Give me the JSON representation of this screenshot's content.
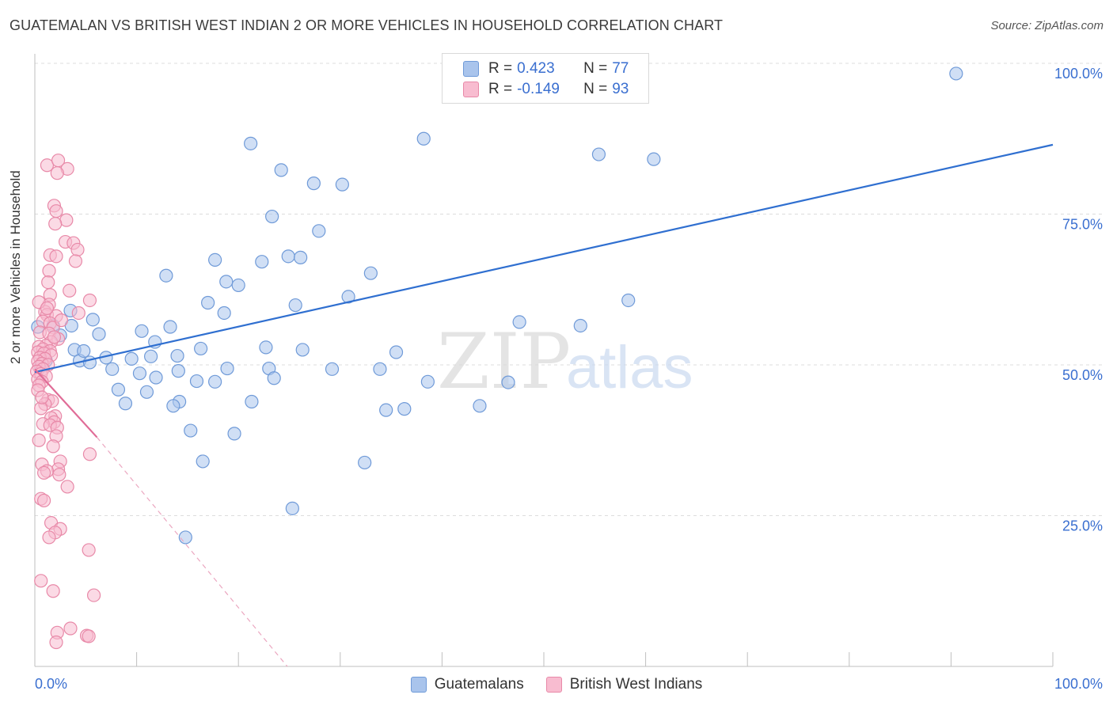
{
  "header": {
    "title": "GUATEMALAN VS BRITISH WEST INDIAN 2 OR MORE VEHICLES IN HOUSEHOLD CORRELATION CHART",
    "source": "Source: ZipAtlas.com"
  },
  "watermark": {
    "part1": "ZIP",
    "part2": "atlas"
  },
  "legend_top": {
    "rows": [
      {
        "label": "R =",
        "r": "0.423",
        "n_label": "N =",
        "n": "77",
        "color": "#a9c4ec",
        "edge": "#6f9ad8"
      },
      {
        "label": "R =",
        "r": "-0.149",
        "n_label": "N =",
        "n": "93",
        "color": "#f8bcd0",
        "edge": "#e889a8"
      }
    ]
  },
  "legend_bottom": [
    {
      "label": "Guatemalans",
      "color": "#a9c4ec",
      "edge": "#6f9ad8"
    },
    {
      "label": "British West Indians",
      "color": "#f8bcd0",
      "edge": "#e889a8"
    }
  ],
  "chart_data": {
    "type": "scatter",
    "title": "GUATEMALAN VS BRITISH WEST INDIAN 2 OR MORE VEHICLES IN HOUSEHOLD CORRELATION CHART",
    "xlabel": "",
    "ylabel": "2 or more Vehicles in Household",
    "xlim": [
      0,
      100
    ],
    "ylim": [
      0,
      100
    ],
    "x_tick_labels": [
      {
        "value": 0,
        "label": "0.0%"
      },
      {
        "value": 100,
        "label": "100.0%"
      }
    ],
    "y_tick_labels": [
      {
        "value": 25,
        "label": "25.0%"
      },
      {
        "value": 50,
        "label": "50.0%"
      },
      {
        "value": 75,
        "label": "75.0%"
      },
      {
        "value": 100,
        "label": "100.0%"
      }
    ],
    "series": [
      {
        "name": "Guatemalans",
        "color": "#a9c4ec",
        "edge": "#6f9ad8",
        "r": 0.423,
        "n": 77,
        "trend": {
          "x": [
            0,
            100
          ],
          "y": [
            48.8,
            86.5
          ],
          "color": "#2f6fd0"
        },
        "points": [
          [
            90.5,
            98.3
          ],
          [
            38.2,
            87.5
          ],
          [
            21.2,
            86.7
          ],
          [
            55.4,
            84.9
          ],
          [
            60.8,
            84.1
          ],
          [
            24.2,
            82.3
          ],
          [
            27.4,
            80.1
          ],
          [
            30.2,
            79.9
          ],
          [
            23.3,
            74.6
          ],
          [
            27.9,
            72.2
          ],
          [
            17.7,
            67.4
          ],
          [
            22.3,
            67.1
          ],
          [
            24.9,
            68.0
          ],
          [
            26.1,
            67.8
          ],
          [
            12.9,
            64.8
          ],
          [
            18.8,
            63.8
          ],
          [
            20.0,
            63.2
          ],
          [
            33.0,
            65.2
          ],
          [
            30.8,
            61.3
          ],
          [
            58.3,
            60.7
          ],
          [
            17.0,
            60.3
          ],
          [
            25.6,
            59.9
          ],
          [
            18.6,
            58.6
          ],
          [
            3.5,
            59.0
          ],
          [
            5.7,
            57.5
          ],
          [
            3.6,
            56.5
          ],
          [
            1.8,
            56.5
          ],
          [
            13.3,
            56.3
          ],
          [
            10.5,
            55.6
          ],
          [
            6.3,
            55.1
          ],
          [
            2.5,
            54.9
          ],
          [
            9.5,
            51.0
          ],
          [
            3.9,
            52.5
          ],
          [
            11.4,
            51.4
          ],
          [
            7.0,
            51.2
          ],
          [
            14.0,
            51.5
          ],
          [
            16.3,
            52.7
          ],
          [
            22.7,
            52.9
          ],
          [
            26.3,
            52.5
          ],
          [
            35.5,
            52.1
          ],
          [
            4.4,
            50.7
          ],
          [
            5.4,
            50.4
          ],
          [
            7.6,
            49.3
          ],
          [
            10.3,
            48.6
          ],
          [
            14.1,
            49.0
          ],
          [
            18.9,
            49.4
          ],
          [
            23.0,
            49.4
          ],
          [
            29.2,
            49.3
          ],
          [
            33.9,
            49.3
          ],
          [
            11.9,
            47.9
          ],
          [
            15.9,
            47.3
          ],
          [
            17.7,
            47.2
          ],
          [
            23.5,
            47.8
          ],
          [
            38.6,
            47.2
          ],
          [
            46.5,
            47.1
          ],
          [
            8.2,
            45.9
          ],
          [
            11.0,
            45.5
          ],
          [
            14.2,
            43.9
          ],
          [
            8.9,
            43.6
          ],
          [
            13.6,
            43.2
          ],
          [
            21.3,
            43.9
          ],
          [
            43.7,
            43.2
          ],
          [
            34.5,
            42.5
          ],
          [
            36.3,
            42.7
          ],
          [
            15.3,
            39.1
          ],
          [
            19.6,
            38.6
          ],
          [
            16.5,
            34.0
          ],
          [
            32.4,
            33.8
          ],
          [
            25.3,
            26.2
          ],
          [
            14.8,
            21.4
          ],
          [
            53.6,
            56.5
          ],
          [
            0.3,
            56.3
          ],
          [
            11.8,
            53.8
          ],
          [
            47.6,
            57.1
          ],
          [
            4.8,
            52.3
          ],
          [
            1.1,
            50.7
          ],
          [
            0.6,
            49.7
          ]
        ]
      },
      {
        "name": "British West Indians",
        "color": "#f8bcd0",
        "edge": "#e889a8",
        "r": -0.149,
        "n": 93,
        "trend": {
          "x": [
            0,
            6.1
          ],
          "y": [
            49.3,
            38.0
          ],
          "dashed_to": [
            24.8,
            0
          ],
          "color": "#e06c97"
        },
        "points": [
          [
            1.2,
            83.1
          ],
          [
            2.3,
            83.9
          ],
          [
            3.2,
            82.5
          ],
          [
            2.2,
            81.8
          ],
          [
            1.9,
            76.4
          ],
          [
            2.1,
            75.5
          ],
          [
            3.1,
            74.0
          ],
          [
            2.0,
            73.4
          ],
          [
            3.0,
            70.4
          ],
          [
            3.8,
            70.2
          ],
          [
            4.2,
            69.1
          ],
          [
            1.5,
            68.2
          ],
          [
            2.1,
            68.0
          ],
          [
            4.0,
            67.2
          ],
          [
            1.4,
            65.6
          ],
          [
            1.3,
            63.7
          ],
          [
            3.4,
            62.3
          ],
          [
            1.5,
            61.6
          ],
          [
            5.4,
            60.7
          ],
          [
            1.4,
            60.0
          ],
          [
            1.0,
            58.8
          ],
          [
            4.3,
            58.6
          ],
          [
            1.2,
            58.3
          ],
          [
            2.1,
            58.1
          ],
          [
            0.8,
            57.2
          ],
          [
            1.5,
            56.9
          ],
          [
            1.8,
            56.2
          ],
          [
            0.5,
            55.4
          ],
          [
            1.4,
            55.2
          ],
          [
            2.3,
            54.3
          ],
          [
            1.6,
            53.8
          ],
          [
            1.1,
            53.2
          ],
          [
            0.4,
            53.0
          ],
          [
            0.8,
            52.6
          ],
          [
            1.5,
            52.3
          ],
          [
            0.3,
            52.1
          ],
          [
            0.9,
            51.9
          ],
          [
            1.6,
            51.6
          ],
          [
            0.5,
            51.2
          ],
          [
            1.0,
            51.0
          ],
          [
            0.3,
            50.6
          ],
          [
            0.7,
            50.2
          ],
          [
            1.3,
            50.0
          ],
          [
            0.4,
            49.7
          ],
          [
            0.8,
            49.3
          ],
          [
            0.2,
            48.9
          ],
          [
            0.6,
            48.5
          ],
          [
            1.1,
            48.1
          ],
          [
            0.3,
            47.6
          ],
          [
            0.7,
            47.2
          ],
          [
            0.4,
            46.6
          ],
          [
            0.3,
            45.8
          ],
          [
            1.3,
            44.2
          ],
          [
            1.7,
            44.0
          ],
          [
            1.0,
            43.5
          ],
          [
            0.6,
            42.8
          ],
          [
            2.0,
            41.5
          ],
          [
            1.6,
            41.2
          ],
          [
            1.9,
            40.5
          ],
          [
            0.8,
            40.2
          ],
          [
            1.5,
            40.0
          ],
          [
            2.2,
            39.6
          ],
          [
            2.1,
            38.2
          ],
          [
            0.4,
            37.5
          ],
          [
            1.8,
            36.5
          ],
          [
            5.4,
            35.2
          ],
          [
            2.5,
            34.0
          ],
          [
            0.7,
            33.5
          ],
          [
            2.3,
            32.7
          ],
          [
            1.2,
            32.4
          ],
          [
            0.9,
            32.1
          ],
          [
            2.4,
            31.8
          ],
          [
            3.2,
            29.8
          ],
          [
            0.6,
            27.8
          ],
          [
            0.9,
            27.5
          ],
          [
            1.6,
            23.8
          ],
          [
            2.5,
            22.8
          ],
          [
            2.0,
            22.2
          ],
          [
            1.4,
            21.4
          ],
          [
            5.3,
            19.3
          ],
          [
            0.6,
            14.2
          ],
          [
            1.8,
            12.5
          ],
          [
            5.8,
            11.8
          ],
          [
            3.5,
            6.3
          ],
          [
            2.2,
            5.6
          ],
          [
            5.1,
            5.1
          ],
          [
            5.3,
            5.0
          ],
          [
            2.1,
            4.0
          ],
          [
            0.4,
            60.4
          ],
          [
            0.7,
            44.6
          ],
          [
            1.9,
            54.6
          ],
          [
            1.2,
            59.4
          ],
          [
            2.6,
            57.4
          ]
        ]
      }
    ]
  }
}
